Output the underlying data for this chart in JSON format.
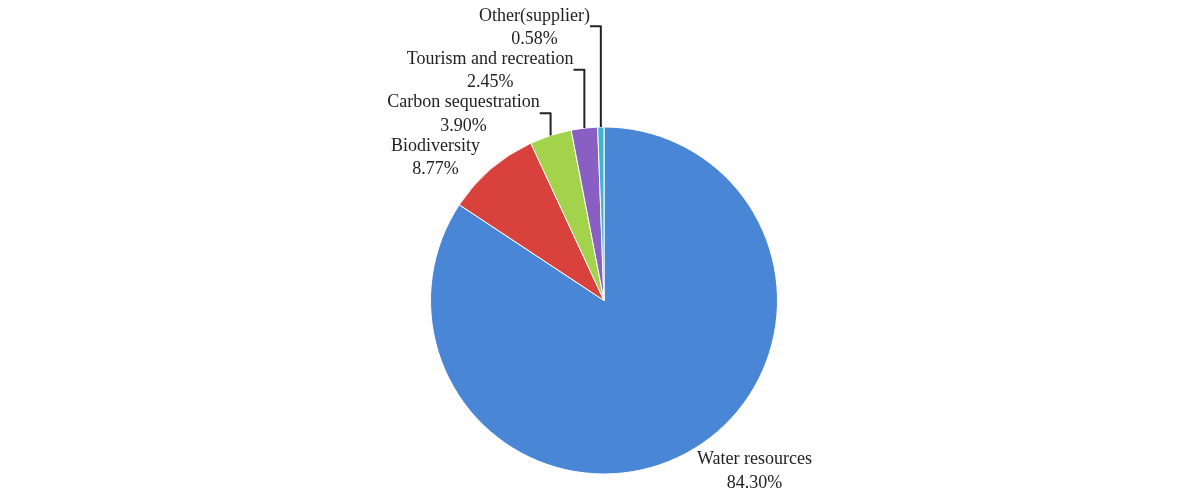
{
  "chart_data": {
    "type": "pie",
    "categories": [
      "Water resources",
      "Biodiversity",
      "Carbon sequestration",
      "Tourism and recreation",
      "Other(supplier)"
    ],
    "values": [
      84.3,
      8.77,
      3.9,
      2.45,
      0.58
    ],
    "value_labels": [
      "84.30%",
      "8.77%",
      "3.90%",
      "2.45%",
      "0.58%"
    ],
    "colors": [
      "#4a86d6",
      "#d9413c",
      "#a3d24b",
      "#8a5fc4",
      "#3cb6cc"
    ],
    "legend": false
  }
}
